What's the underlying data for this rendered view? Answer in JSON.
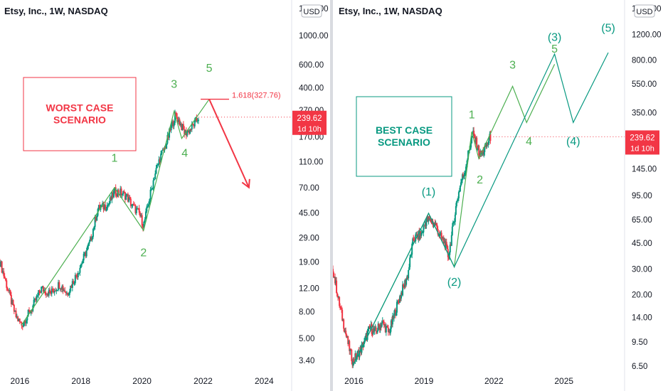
{
  "chart_data": [
    {
      "type": "line",
      "title": "Etsy, Inc., 1W, NASDAQ",
      "currency": "USD",
      "scale": "log",
      "ylim": [
        3.2,
        1600
      ],
      "y_ticks": [
        1600,
        1000,
        600,
        400,
        270,
        170,
        110,
        70,
        45,
        29,
        19,
        12,
        8,
        5,
        3.4
      ],
      "y_tick_labels": [
        "1600.00",
        "1000.00",
        "600.00",
        "400.00",
        "270.00",
        "170.00",
        "110.00",
        "70.00",
        "45.00",
        "29.00",
        "19.00",
        "12.00",
        "8.00",
        "5.00",
        "3.40"
      ],
      "x_ticks": [
        2016,
        2018,
        2020,
        2022,
        2024
      ],
      "xlim": [
        2015.35,
        2024.9
      ],
      "price_label": "239.62",
      "countdown": "1d 10h",
      "box_label": "WORST CASE\nSCENARIO",
      "box_color": "#f23645",
      "fib_label": "1.618(327.76)",
      "series": [
        {
          "points": [
            [
              2015.35,
              19
            ],
            [
              2015.6,
              12
            ],
            [
              2015.85,
              7.5
            ],
            [
              2016.05,
              6.3
            ],
            [
              2016.4,
              8.5
            ],
            [
              2016.7,
              12
            ],
            [
              2017.0,
              11
            ],
            [
              2017.3,
              13
            ],
            [
              2017.55,
              11
            ],
            [
              2017.9,
              16
            ],
            [
              2018.3,
              27
            ],
            [
              2018.55,
              48
            ],
            [
              2018.9,
              52
            ],
            [
              2019.1,
              65
            ],
            [
              2019.3,
              64
            ],
            [
              2019.5,
              60
            ],
            [
              2019.7,
              50
            ],
            [
              2019.9,
              45
            ],
            [
              2020.05,
              36
            ],
            [
              2020.2,
              52
            ],
            [
              2020.4,
              85
            ],
            [
              2020.6,
              120
            ],
            [
              2020.75,
              140
            ],
            [
              2020.95,
              200
            ],
            [
              2021.1,
              250
            ],
            [
              2021.25,
              215
            ],
            [
              2021.4,
              180
            ],
            [
              2021.55,
              190
            ],
            [
              2021.75,
              220
            ],
            [
              2021.85,
              239.62
            ]
          ]
        }
      ],
      "wave_path": [
        [
          2016.05,
          6.3
        ],
        [
          2019.1,
          70
        ],
        [
          2020.05,
          33
        ],
        [
          2021.05,
          265
        ],
        [
          2021.3,
          165
        ],
        [
          2022.2,
          327.76
        ]
      ],
      "wave_color": "#4caf50",
      "projection": [
        [
          2022.2,
          327.76
        ],
        [
          2023.5,
          70
        ]
      ],
      "projection_color": "#f23645",
      "waves": [
        {
          "label": "1",
          "x": 2019.1,
          "y": 110
        },
        {
          "label": "2",
          "x": 2020.05,
          "y": 21
        },
        {
          "label": "3",
          "x": 2021.05,
          "y": 400
        },
        {
          "label": "4",
          "x": 2021.4,
          "y": 120
        },
        {
          "label": "5",
          "x": 2022.2,
          "y": 530
        }
      ]
    },
    {
      "type": "line",
      "title": "Etsy, Inc., 1W, NASDAQ",
      "currency": "USD",
      "scale": "log",
      "ylim": [
        6.3,
        1800
      ],
      "y_ticks": [
        1800,
        1200,
        800,
        550,
        350,
        239,
        145,
        95,
        65,
        45,
        30,
        20,
        14,
        9.5,
        6.5
      ],
      "y_tick_labels": [
        "1800.00",
        "1200.00",
        "800.00",
        "550.00",
        "350.00",
        "",
        "145.00",
        "95.00",
        "65.00",
        "45.00",
        "30.00",
        "20.00",
        "14.00",
        "9.50",
        "6.50"
      ],
      "x_ticks": [
        2016,
        2019,
        2022,
        2025
      ],
      "xlim": [
        2015.1,
        2027.6
      ],
      "price_label": "239.62",
      "countdown": "1d 10h",
      "box_label": "BEST CASE\nSCENARIO",
      "box_color": "#089981",
      "series": [
        {
          "points": [
            [
              2015.1,
              30
            ],
            [
              2015.35,
              18
            ],
            [
              2015.7,
              10
            ],
            [
              2015.95,
              7
            ],
            [
              2016.3,
              8.5
            ],
            [
              2016.7,
              12
            ],
            [
              2016.9,
              11
            ],
            [
              2017.2,
              13
            ],
            [
              2017.5,
              11
            ],
            [
              2017.9,
              18
            ],
            [
              2018.3,
              27
            ],
            [
              2018.55,
              48
            ],
            [
              2018.9,
              52
            ],
            [
              2019.1,
              65
            ],
            [
              2019.3,
              64
            ],
            [
              2019.5,
              60
            ],
            [
              2019.7,
              50
            ],
            [
              2019.9,
              45
            ],
            [
              2020.05,
              36
            ],
            [
              2020.2,
              52
            ],
            [
              2020.4,
              85
            ],
            [
              2020.6,
              120
            ],
            [
              2020.75,
              140
            ],
            [
              2020.95,
              200
            ],
            [
              2021.1,
              250
            ],
            [
              2021.25,
              215
            ],
            [
              2021.4,
              180
            ],
            [
              2021.55,
              190
            ],
            [
              2021.75,
              220
            ],
            [
              2021.85,
              239.62
            ]
          ]
        }
      ],
      "wave_path": [
        [
          2015.95,
          6.5
        ],
        [
          2019.2,
          72
        ],
        [
          2020.3,
          31
        ],
        [
          2021.05,
          260
        ],
        [
          2021.35,
          170
        ],
        [
          2022.8,
          530
        ],
        [
          2023.4,
          300
        ],
        [
          2024.6,
          750
        ]
      ],
      "macro_path": [
        [
          2015.95,
          6.5
        ],
        [
          2019.2,
          72
        ],
        [
          2020.3,
          31
        ],
        [
          2024.6,
          880
        ],
        [
          2025.4,
          300
        ],
        [
          2026.9,
          900
        ]
      ],
      "wave_color": "#4caf50",
      "macro_color": "#089981",
      "waves_minor": [
        {
          "label": "1",
          "x": 2021.05,
          "y": 320
        },
        {
          "label": "2",
          "x": 2021.4,
          "y": 115
        },
        {
          "label": "3",
          "x": 2022.8,
          "y": 700
        },
        {
          "label": "4",
          "x": 2023.5,
          "y": 210
        },
        {
          "label": "5",
          "x": 2024.6,
          "y": 900
        }
      ],
      "waves_major": [
        {
          "label": "(1)",
          "x": 2019.2,
          "y": 95
        },
        {
          "label": "(2)",
          "x": 2020.3,
          "y": 23
        },
        {
          "label": "(3)",
          "x": 2024.6,
          "y": 1080
        },
        {
          "label": "(4)",
          "x": 2025.4,
          "y": 210
        },
        {
          "label": "(5)",
          "x": 2026.9,
          "y": 1250
        }
      ]
    }
  ]
}
